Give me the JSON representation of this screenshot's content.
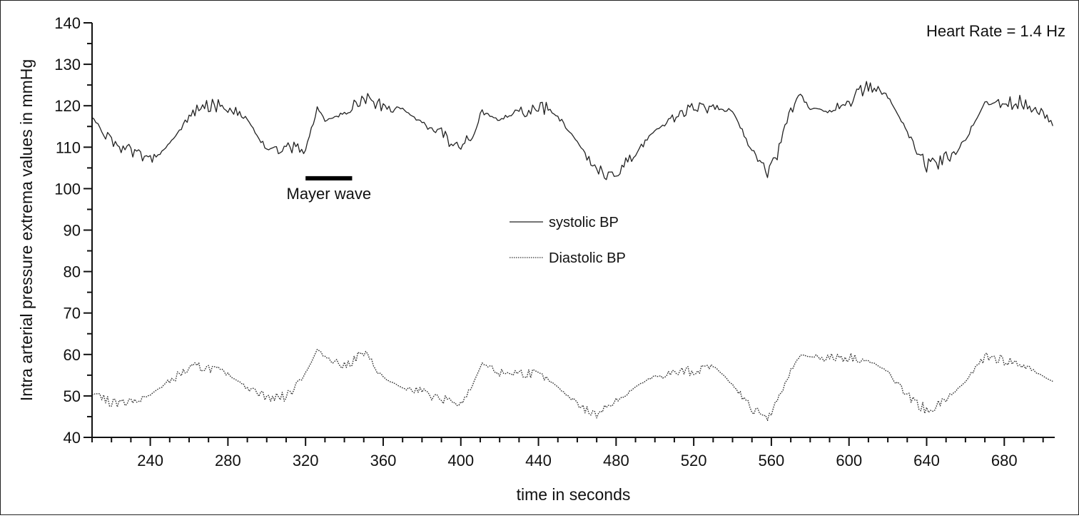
{
  "chart_data": {
    "type": "line",
    "title": "",
    "xlabel": "time in seconds",
    "ylabel": "Intra arterial pressure extrema values in mmHg",
    "xlim": [
      210,
      706
    ],
    "ylim": [
      40,
      140
    ],
    "x_ticks": [
      240,
      280,
      320,
      360,
      400,
      440,
      480,
      520,
      560,
      600,
      640,
      680
    ],
    "y_ticks": [
      40,
      50,
      60,
      70,
      80,
      90,
      100,
      110,
      120,
      130,
      140
    ],
    "x_tick_labels": [
      "240",
      "280",
      "320",
      "360",
      "400",
      "440",
      "480",
      "520",
      "560",
      "600",
      "640",
      "680"
    ],
    "y_tick_labels": [
      "40",
      "50",
      "60",
      "70",
      "80",
      "90",
      "100",
      "110",
      "120",
      "130",
      "140"
    ],
    "grid": false,
    "legend_position": "center",
    "heart_rate_label": "Heart Rate = 1.4 Hz",
    "annotation": {
      "text": "Mayer wave",
      "x_start": 320,
      "x_end": 344,
      "y": 102.5
    },
    "series": [
      {
        "name": "systolic BP",
        "style": "solid",
        "color": "#222222",
        "sample_step_s": 1,
        "x_start": 210,
        "x_end": 705,
        "oscillation_amplitude_mmHg": 6.5,
        "envelope_t": [
          210,
          220,
          230,
          240,
          250,
          260,
          270,
          280,
          290,
          300,
          310,
          320,
          326,
          330,
          340,
          350,
          360,
          370,
          380,
          390,
          400,
          405,
          411,
          420,
          430,
          440,
          450,
          460,
          470,
          480,
          490,
          500,
          510,
          520,
          530,
          540,
          550,
          558,
          565,
          570,
          575,
          580,
          590,
          600,
          610,
          620,
          630,
          640,
          650,
          660,
          670,
          680,
          690,
          705
        ],
        "envelope_mid": [
          118,
          116,
          115,
          111,
          111,
          113,
          114,
          115,
          116,
          113,
          116,
          115,
          122,
          118,
          115,
          116,
          114,
          117,
          118,
          119,
          116,
          117,
          121,
          115,
          113,
          114,
          114,
          112,
          109,
          110,
          113,
          114,
          113,
          113,
          115,
          118,
          113,
          109,
          117,
          124,
          126,
          121,
          116,
          115,
          119,
          120,
          116,
          111,
          113,
          115,
          119,
          115,
          115,
          114
        ]
      },
      {
        "name": "Diastolic BP",
        "style": "dotted",
        "color": "#333333",
        "sample_step_s": 1,
        "x_start": 210,
        "x_end": 705,
        "oscillation_amplitude_mmHg": 4.8,
        "envelope_t": [
          210,
          220,
          230,
          240,
          250,
          260,
          270,
          280,
          290,
          300,
          310,
          320,
          326,
          330,
          340,
          350,
          360,
          370,
          380,
          390,
          400,
          405,
          411,
          420,
          430,
          440,
          450,
          460,
          470,
          480,
          490,
          500,
          510,
          520,
          530,
          540,
          550,
          558,
          565,
          570,
          575,
          580,
          590,
          600,
          610,
          620,
          630,
          640,
          650,
          660,
          670,
          680,
          690,
          705
        ],
        "envelope_mid": [
          54,
          53,
          52,
          51,
          51,
          52,
          53,
          54,
          54,
          54,
          54,
          57,
          61,
          58,
          53,
          56,
          52,
          53,
          55,
          54,
          51,
          53,
          57,
          52,
          51,
          52,
          52,
          51,
          50,
          52,
          53,
          52,
          51,
          52,
          56,
          55,
          51,
          49,
          54,
          58,
          60,
          58,
          55,
          55,
          56,
          57,
          54,
          51,
          52,
          53,
          56,
          54,
          54,
          55
        ]
      }
    ]
  }
}
